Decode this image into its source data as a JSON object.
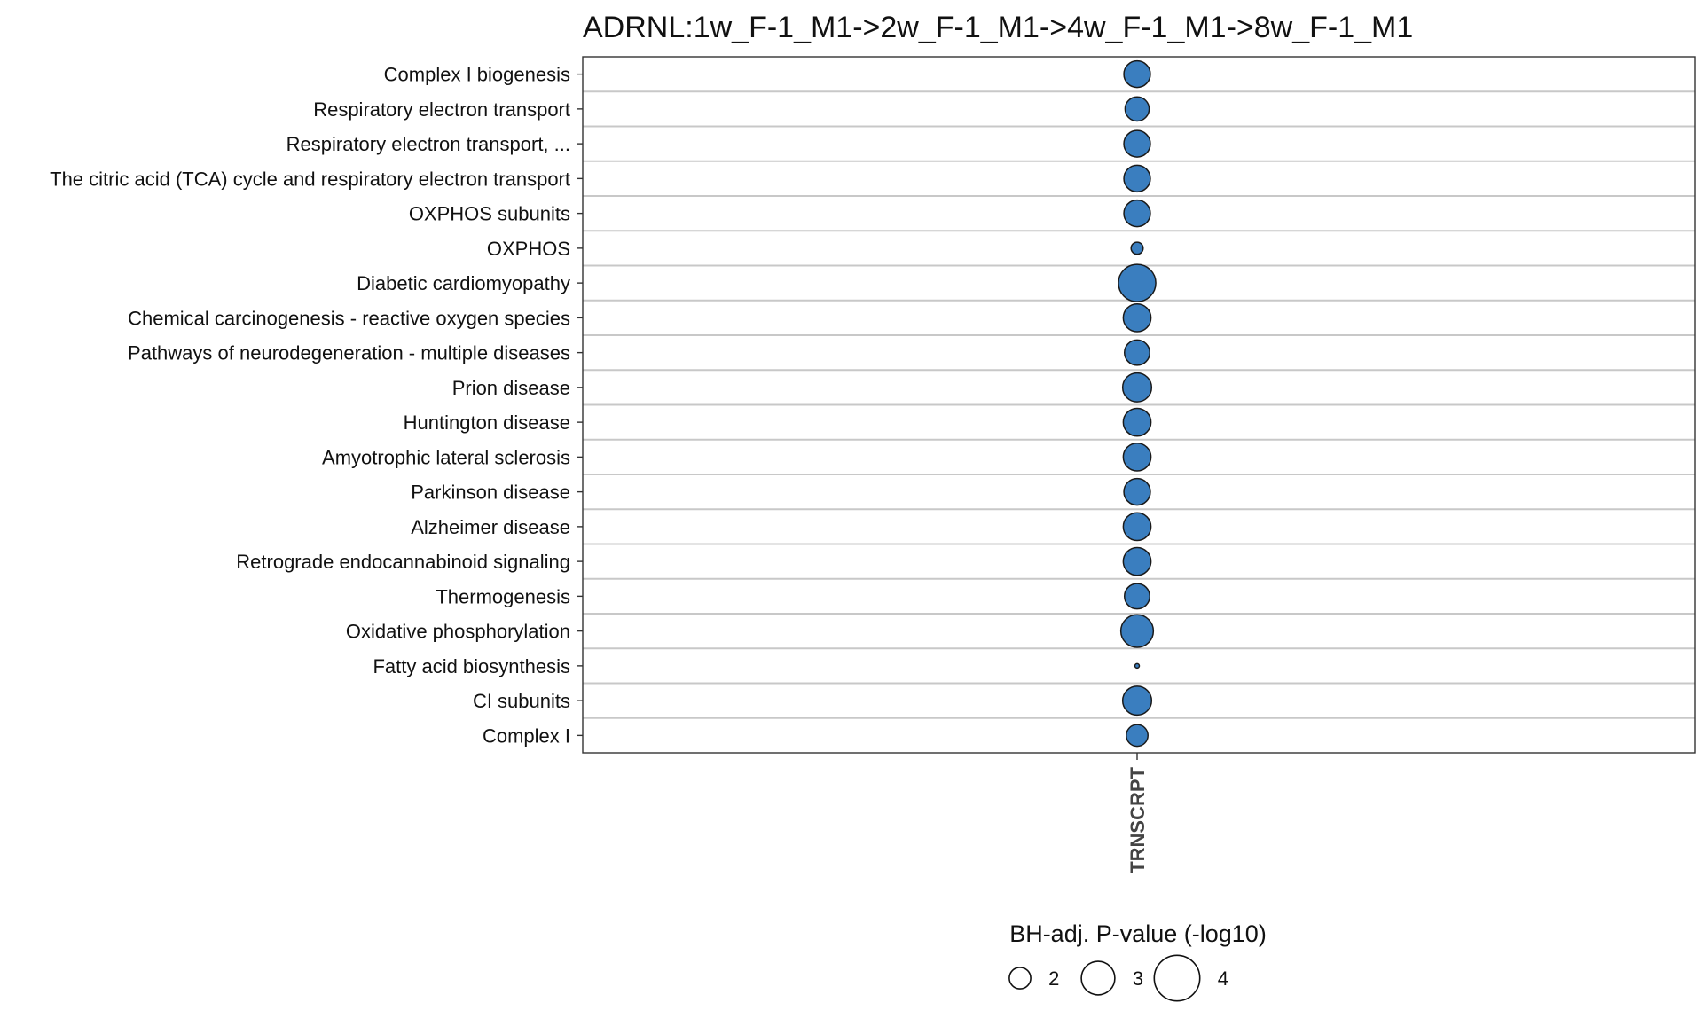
{
  "chart_data": {
    "type": "scatter",
    "title": "ADRNL:1w_F-1_M1->2w_F-1_M1->4w_F-1_M1->8w_F-1_M1",
    "x_categories": [
      "TRNSCRPT"
    ],
    "y_categories": [
      "Complex I biogenesis",
      "Respiratory electron transport",
      "Respiratory electron transport, ...",
      "The citric acid (TCA) cycle and respiratory electron transport",
      "OXPHOS subunits",
      "OXPHOS",
      "Diabetic cardiomyopathy",
      "Chemical carcinogenesis - reactive oxygen species",
      "Pathways of neurodegeneration - multiple diseases",
      "Prion disease",
      "Huntington disease",
      "Amyotrophic lateral sclerosis",
      "Parkinson disease",
      "Alzheimer disease",
      "Retrograde endocannabinoid signaling",
      "Thermogenesis",
      "Oxidative phosphorylation",
      "Fatty acid biosynthesis",
      "CI subunits",
      "Complex I"
    ],
    "points": [
      {
        "x": "TRNSCRPT",
        "y": "Complex I biogenesis",
        "size": 3.3
      },
      {
        "x": "TRNSCRPT",
        "y": "Respiratory electron transport",
        "size": 3.1
      },
      {
        "x": "TRNSCRPT",
        "y": "Respiratory electron transport, ...",
        "size": 3.3
      },
      {
        "x": "TRNSCRPT",
        "y": "The citric acid (TCA) cycle and respiratory electron transport",
        "size": 3.3
      },
      {
        "x": "TRNSCRPT",
        "y": "OXPHOS subunits",
        "size": 3.3
      },
      {
        "x": "TRNSCRPT",
        "y": "OXPHOS",
        "size": 2.1
      },
      {
        "x": "TRNSCRPT",
        "y": "Diabetic cardiomyopathy",
        "size": 4.2
      },
      {
        "x": "TRNSCRPT",
        "y": "Chemical carcinogenesis - reactive oxygen species",
        "size": 3.4
      },
      {
        "x": "TRNSCRPT",
        "y": "Pathways of neurodegeneration - multiple diseases",
        "size": 3.2
      },
      {
        "x": "TRNSCRPT",
        "y": "Prion disease",
        "size": 3.5
      },
      {
        "x": "TRNSCRPT",
        "y": "Huntington disease",
        "size": 3.4
      },
      {
        "x": "TRNSCRPT",
        "y": "Amyotrophic lateral sclerosis",
        "size": 3.4
      },
      {
        "x": "TRNSCRPT",
        "y": "Parkinson disease",
        "size": 3.3
      },
      {
        "x": "TRNSCRPT",
        "y": "Alzheimer disease",
        "size": 3.4
      },
      {
        "x": "TRNSCRPT",
        "y": "Retrograde endocannabinoid signaling",
        "size": 3.4
      },
      {
        "x": "TRNSCRPT",
        "y": "Thermogenesis",
        "size": 3.2
      },
      {
        "x": "TRNSCRPT",
        "y": "Oxidative phosphorylation",
        "size": 3.8
      },
      {
        "x": "TRNSCRPT",
        "y": "Fatty acid biosynthesis",
        "size": 1.3
      },
      {
        "x": "TRNSCRPT",
        "y": "CI subunits",
        "size": 3.5
      },
      {
        "x": "TRNSCRPT",
        "y": "Complex I",
        "size": 2.9
      }
    ],
    "size_legend": {
      "title": "BH-adj. P-value (-log10)",
      "values": [
        2,
        3,
        4
      ]
    },
    "grid": true,
    "legend_position": "bottom",
    "colors": {
      "point_fill": "#3a7ebf",
      "point_stroke": "#1a1a1a",
      "grid": "#c8c8c8",
      "panel_border": "#333333"
    }
  }
}
